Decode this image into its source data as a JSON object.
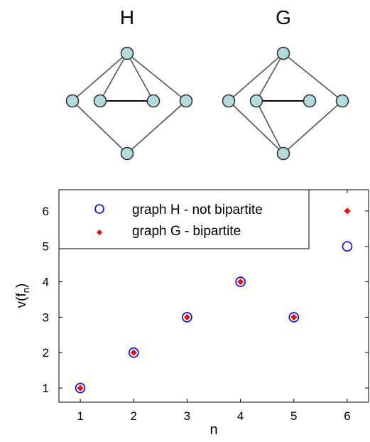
{
  "graphs": [
    {
      "label": "H",
      "node_color": "#b2dcdc",
      "nodes": [
        "top",
        "left",
        "inner-left",
        "inner-right",
        "right",
        "bottom"
      ],
      "edges": [
        [
          "top",
          "left"
        ],
        [
          "top",
          "right"
        ],
        [
          "top",
          "inner-left"
        ],
        [
          "top",
          "inner-right"
        ],
        [
          "inner-left",
          "inner-right"
        ],
        [
          "left",
          "bottom"
        ],
        [
          "right",
          "bottom"
        ]
      ]
    },
    {
      "label": "G",
      "node_color": "#b2dcdc",
      "nodes": [
        "top",
        "left",
        "inner-left",
        "inner-right",
        "right",
        "bottom"
      ],
      "edges": [
        [
          "top",
          "left"
        ],
        [
          "top",
          "right"
        ],
        [
          "top",
          "inner-left"
        ],
        [
          "inner-left",
          "inner-right"
        ],
        [
          "inner-left",
          "bottom"
        ],
        [
          "left",
          "bottom"
        ],
        [
          "right",
          "bottom"
        ]
      ]
    }
  ],
  "chart_data": {
    "type": "scatter",
    "xlabel": "n",
    "ylabel": "v(f_n)",
    "x_ticks": [
      1,
      2,
      3,
      4,
      5,
      6
    ],
    "y_ticks": [
      1,
      2,
      3,
      4,
      5,
      6
    ],
    "xlim": [
      0.6,
      6.4
    ],
    "ylim": [
      0.6,
      6.6
    ],
    "legend_position": "top-left",
    "series": [
      {
        "name": "graph H - not bipartite",
        "marker": "open-circle",
        "color": "#0000ff",
        "x": [
          1,
          2,
          3,
          4,
          5,
          6
        ],
        "y": [
          1,
          2,
          3,
          4,
          3,
          5
        ]
      },
      {
        "name": "graph G - bipartite",
        "marker": "filled-diamond",
        "color": "#ff0000",
        "x": [
          1,
          2,
          3,
          4,
          5,
          6
        ],
        "y": [
          1,
          2,
          3,
          4,
          3,
          6
        ]
      }
    ]
  }
}
